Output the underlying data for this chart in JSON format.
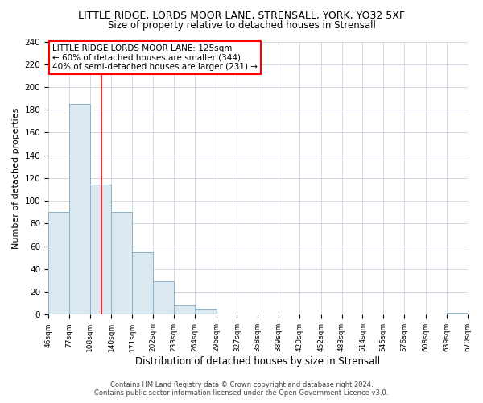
{
  "title": "LITTLE RIDGE, LORDS MOOR LANE, STRENSALL, YORK, YO32 5XF",
  "subtitle": "Size of property relative to detached houses in Strensall",
  "xlabel": "Distribution of detached houses by size in Strensall",
  "ylabel": "Number of detached properties",
  "bar_edges": [
    46,
    77,
    108,
    140,
    171,
    202,
    233,
    264,
    296,
    327,
    358,
    389,
    420,
    452,
    483,
    514,
    545,
    576,
    608,
    639,
    670
  ],
  "bar_heights": [
    90,
    185,
    114,
    90,
    55,
    29,
    8,
    5,
    0,
    0,
    0,
    0,
    0,
    0,
    0,
    0,
    0,
    0,
    0,
    2
  ],
  "bar_color": "#dce8f0",
  "bar_edgecolor": "#8ab0cc",
  "reference_line_x": 125,
  "ylim": [
    0,
    240
  ],
  "yticks": [
    0,
    20,
    40,
    60,
    80,
    100,
    120,
    140,
    160,
    180,
    200,
    220,
    240
  ],
  "tick_labels": [
    "46sqm",
    "77sqm",
    "108sqm",
    "140sqm",
    "171sqm",
    "202sqm",
    "233sqm",
    "264sqm",
    "296sqm",
    "327sqm",
    "358sqm",
    "389sqm",
    "420sqm",
    "452sqm",
    "483sqm",
    "514sqm",
    "545sqm",
    "576sqm",
    "608sqm",
    "639sqm",
    "670sqm"
  ],
  "annotation_title": "LITTLE RIDGE LORDS MOOR LANE: 125sqm",
  "annotation_line1": "← 60% of detached houses are smaller (344)",
  "annotation_line2": "40% of semi-detached houses are larger (231) →",
  "footer_line1": "Contains HM Land Registry data © Crown copyright and database right 2024.",
  "footer_line2": "Contains public sector information licensed under the Open Government Licence v3.0.",
  "background_color": "#ffffff",
  "grid_color": "#c8d4e0"
}
